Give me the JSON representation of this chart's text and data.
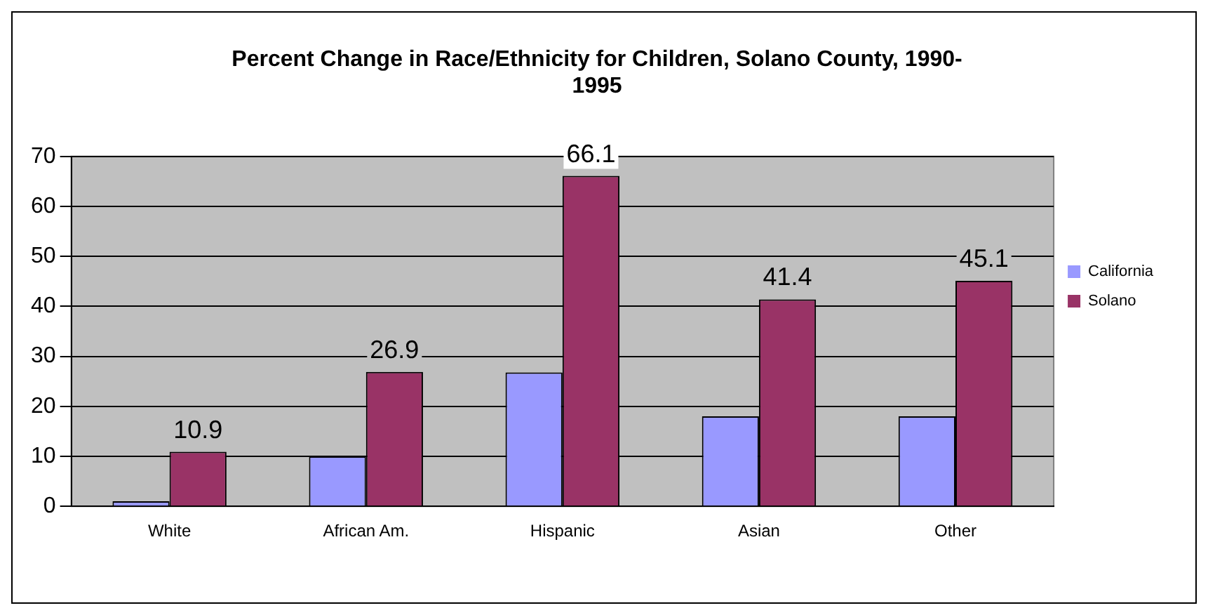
{
  "chart_data": {
    "type": "bar",
    "title": [
      "Percent Change in Race/Ethnicity for Children, Solano County, 1990-",
      "1995"
    ],
    "categories": [
      "White",
      "African Am.",
      "Hispanic",
      "Asian",
      "Other"
    ],
    "series": [
      {
        "name": "California",
        "color": "#9999ff",
        "values": [
          1,
          10,
          26.8,
          18,
          18
        ]
      },
      {
        "name": "Solano",
        "color": "#993366",
        "values": [
          10.9,
          26.9,
          66.1,
          41.4,
          45.1
        ],
        "value_labels": [
          "10.9",
          "26.9",
          "66.1",
          "41.4",
          "45.1"
        ]
      }
    ],
    "ylim": [
      0,
      70
    ],
    "yticks": [
      0,
      10,
      20,
      30,
      40,
      50,
      60,
      70
    ],
    "grid": "y",
    "legend": "right"
  }
}
